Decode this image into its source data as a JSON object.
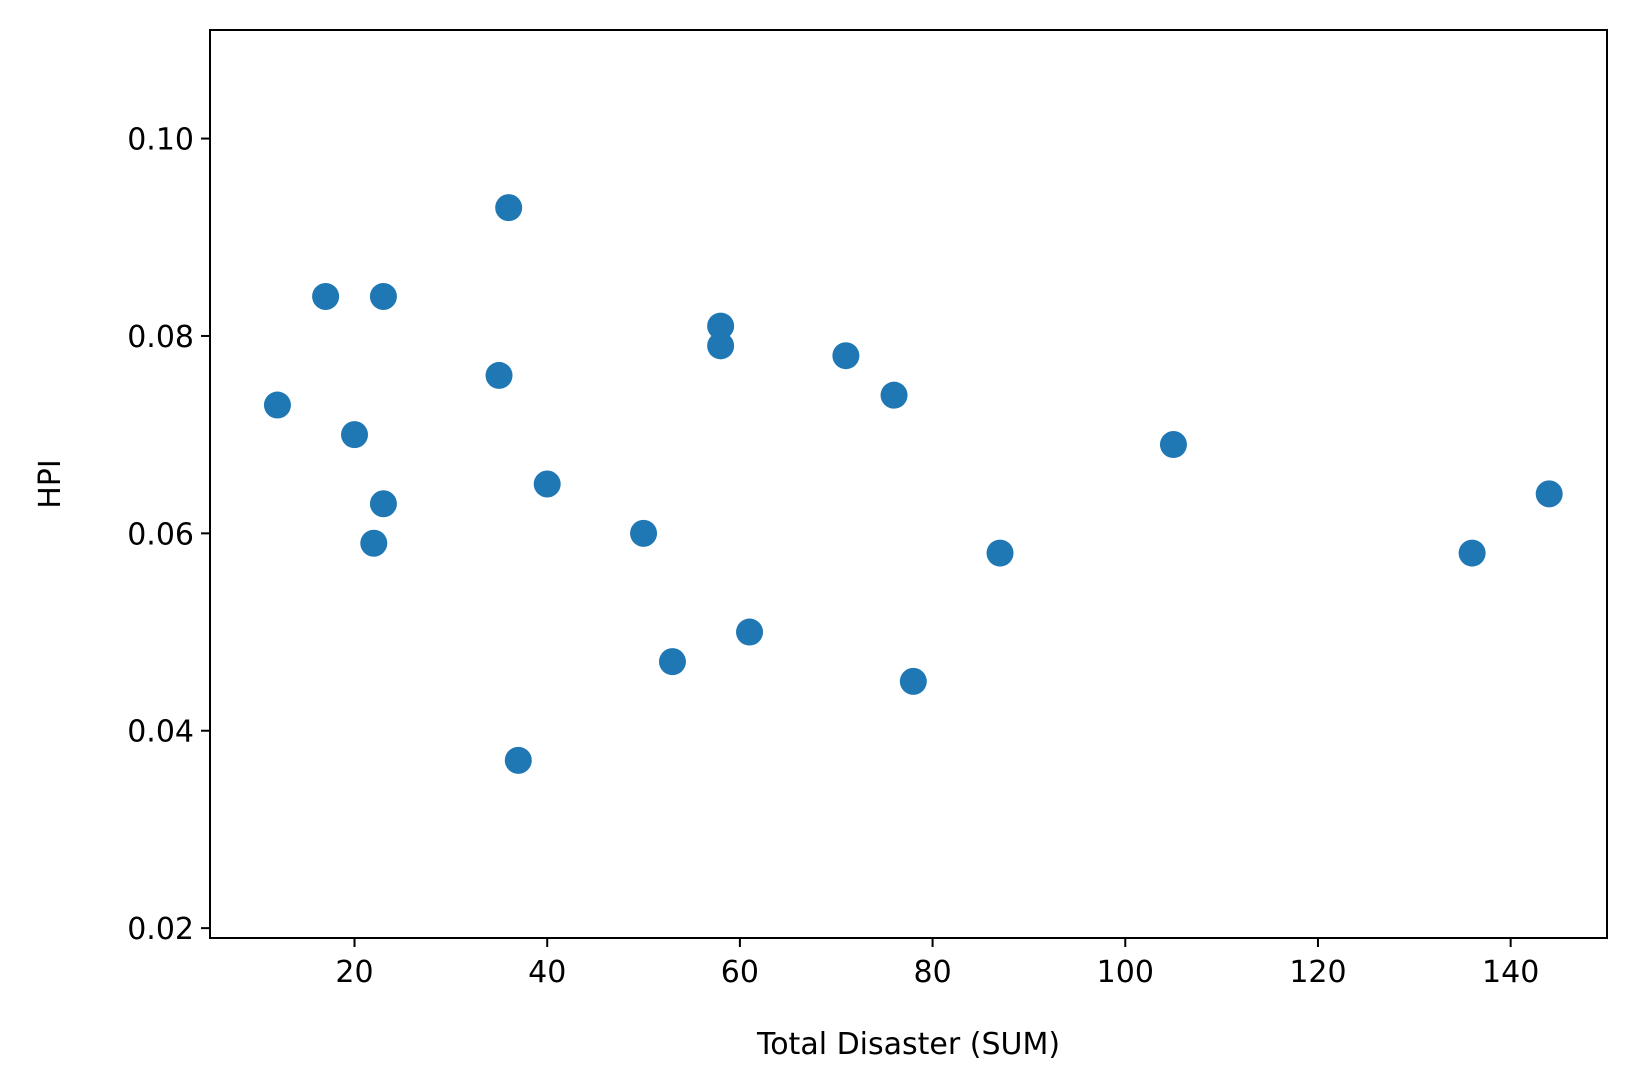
{
  "chart_data": {
    "type": "scatter",
    "title": "",
    "xlabel": "Total Disaster (SUM)",
    "ylabel": "HPI",
    "xlim": [
      5,
      150
    ],
    "ylim": [
      0.019,
      0.111
    ],
    "x_ticks": [
      20,
      40,
      60,
      80,
      100,
      120,
      140
    ],
    "x_tick_labels": [
      "20",
      "40",
      "60",
      "80",
      "100",
      "120",
      "140"
    ],
    "y_ticks": [
      0.02,
      0.04,
      0.06,
      0.08,
      0.1
    ],
    "y_tick_labels": [
      "0.02",
      "0.04",
      "0.06",
      "0.08",
      "0.10"
    ],
    "grid": false,
    "legend": "none",
    "marker_color": "#1f77b4",
    "points": [
      {
        "x": 12,
        "y": 0.073
      },
      {
        "x": 17,
        "y": 0.084
      },
      {
        "x": 20,
        "y": 0.07
      },
      {
        "x": 22,
        "y": 0.059
      },
      {
        "x": 23,
        "y": 0.084
      },
      {
        "x": 23,
        "y": 0.063
      },
      {
        "x": 35,
        "y": 0.076
      },
      {
        "x": 36,
        "y": 0.093
      },
      {
        "x": 37,
        "y": 0.037
      },
      {
        "x": 40,
        "y": 0.065
      },
      {
        "x": 50,
        "y": 0.06
      },
      {
        "x": 53,
        "y": 0.047
      },
      {
        "x": 58,
        "y": 0.081
      },
      {
        "x": 58,
        "y": 0.079
      },
      {
        "x": 61,
        "y": 0.05
      },
      {
        "x": 71,
        "y": 0.078
      },
      {
        "x": 76,
        "y": 0.074
      },
      {
        "x": 78,
        "y": 0.045
      },
      {
        "x": 87,
        "y": 0.058
      },
      {
        "x": 105,
        "y": 0.069
      },
      {
        "x": 136,
        "y": 0.058
      },
      {
        "x": 144,
        "y": 0.064
      }
    ]
  }
}
